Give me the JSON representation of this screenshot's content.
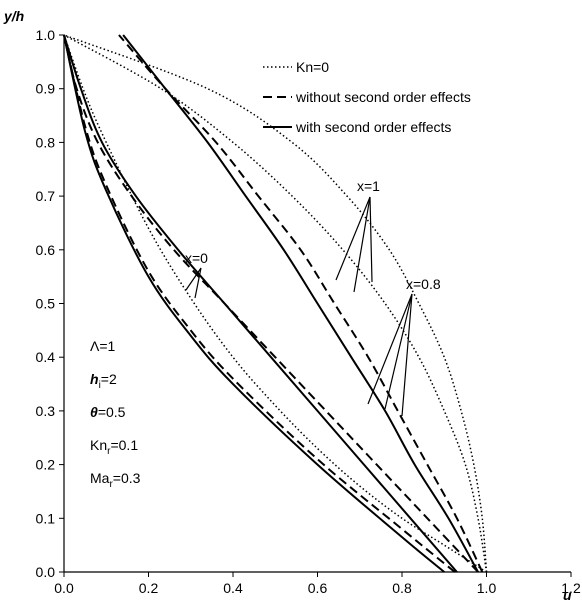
{
  "chart_data": {
    "type": "line",
    "xlabel": "u",
    "ylabel": "y/h",
    "xlim": [
      0,
      1.2
    ],
    "ylim": [
      0,
      1
    ],
    "x_ticks": [
      "0.0",
      "0.2",
      "0.4",
      "0.6",
      "0.8",
      "1.0",
      "1.2"
    ],
    "y_ticks": [
      "0.0",
      "0.1",
      "0.2",
      "0.3",
      "0.4",
      "0.5",
      "0.6",
      "0.7",
      "0.8",
      "0.9",
      "1.0"
    ],
    "grid": false,
    "legend_position": "top-right",
    "legend": [
      {
        "label": "Kn=0",
        "style": "dotted"
      },
      {
        "label": "without second order effects",
        "style": "dashed"
      },
      {
        "label": "with second order effects",
        "style": "solid"
      }
    ],
    "annotations": {
      "x0": "x=0",
      "x08": "x=0.8",
      "x1": "x=1"
    },
    "parameters": [
      {
        "main": "Λ=1",
        "italic": false,
        "sub": "",
        "tail": ""
      },
      {
        "main": "h",
        "italic": true,
        "sub": "i",
        "tail": "=2"
      },
      {
        "main": "θ",
        "italic": true,
        "sub": "",
        "tail": "=0.5"
      },
      {
        "main": "Kn",
        "italic": false,
        "sub": "r",
        "tail": "=0.1"
      },
      {
        "main": "Ma",
        "italic": false,
        "sub": "r",
        "tail": "=0.3"
      }
    ],
    "series": [
      {
        "group": "x=0",
        "style": "dotted",
        "points": [
          [
            1.0,
            0
          ],
          [
            0.9,
            0.05
          ],
          [
            0.8,
            0.1
          ],
          [
            0.7,
            0.16
          ],
          [
            0.6,
            0.23
          ],
          [
            0.5,
            0.31
          ],
          [
            0.4,
            0.4
          ],
          [
            0.3,
            0.51
          ],
          [
            0.2,
            0.64
          ],
          [
            0.1,
            0.8
          ],
          [
            0.05,
            0.89
          ],
          [
            0.0,
            1.0
          ]
        ]
      },
      {
        "group": "x=0",
        "style": "dashed",
        "points": [
          [
            0.925,
            0
          ],
          [
            0.8,
            0.08
          ],
          [
            0.6,
            0.21
          ],
          [
            0.4,
            0.36
          ],
          [
            0.3,
            0.45
          ],
          [
            0.2,
            0.56
          ],
          [
            0.1,
            0.72
          ],
          [
            0.05,
            0.83
          ],
          [
            0.0,
            1.0
          ]
        ]
      },
      {
        "group": "x=0",
        "style": "solid",
        "points": [
          [
            0.9,
            0
          ],
          [
            0.8,
            0.065
          ],
          [
            0.6,
            0.2
          ],
          [
            0.4,
            0.35
          ],
          [
            0.3,
            0.44
          ],
          [
            0.2,
            0.55
          ],
          [
            0.1,
            0.71
          ],
          [
            0.05,
            0.82
          ],
          [
            0.0,
            1.0
          ]
        ]
      },
      {
        "group": "x=0.8",
        "style": "dotted",
        "points": [
          [
            1.0,
            0
          ],
          [
            0.98,
            0.1
          ],
          [
            0.95,
            0.2
          ],
          [
            0.9,
            0.3
          ],
          [
            0.84,
            0.4
          ],
          [
            0.76,
            0.5
          ],
          [
            0.66,
            0.6
          ],
          [
            0.54,
            0.7
          ],
          [
            0.4,
            0.8
          ],
          [
            0.23,
            0.9
          ],
          [
            0.0,
            1.0
          ]
        ]
      },
      {
        "group": "x=0.8",
        "style": "dashed",
        "points": [
          [
            0.98,
            0
          ],
          [
            0.86,
            0.1
          ],
          [
            0.74,
            0.2
          ],
          [
            0.62,
            0.3
          ],
          [
            0.5,
            0.4
          ],
          [
            0.38,
            0.5
          ],
          [
            0.26,
            0.6
          ],
          [
            0.16,
            0.7
          ],
          [
            0.08,
            0.8
          ],
          [
            0.03,
            0.9
          ],
          [
            0.0,
            1.0
          ]
        ]
      },
      {
        "group": "x=0.8",
        "style": "solid",
        "points": [
          [
            0.93,
            0
          ],
          [
            0.82,
            0.1
          ],
          [
            0.71,
            0.2
          ],
          [
            0.6,
            0.3
          ],
          [
            0.49,
            0.4
          ],
          [
            0.38,
            0.5
          ],
          [
            0.27,
            0.6
          ],
          [
            0.17,
            0.7
          ],
          [
            0.09,
            0.8
          ],
          [
            0.04,
            0.9
          ],
          [
            0.0,
            1.0
          ]
        ]
      },
      {
        "group": "x=1",
        "style": "dotted",
        "points": [
          [
            1.0,
            0
          ],
          [
            0.99,
            0.1
          ],
          [
            0.97,
            0.2
          ],
          [
            0.94,
            0.3
          ],
          [
            0.9,
            0.4
          ],
          [
            0.84,
            0.5
          ],
          [
            0.77,
            0.6
          ],
          [
            0.67,
            0.7
          ],
          [
            0.54,
            0.8
          ],
          [
            0.34,
            0.9
          ],
          [
            0.0,
            1.0
          ]
        ]
      },
      {
        "group": "x=1",
        "style": "dashed",
        "points": [
          [
            0.99,
            0
          ],
          [
            0.93,
            0.1
          ],
          [
            0.86,
            0.2
          ],
          [
            0.79,
            0.3
          ],
          [
            0.72,
            0.4
          ],
          [
            0.64,
            0.5
          ],
          [
            0.56,
            0.6
          ],
          [
            0.46,
            0.7
          ],
          [
            0.36,
            0.8
          ],
          [
            0.24,
            0.9
          ],
          [
            0.13,
            1.0
          ]
        ]
      },
      {
        "group": "x=1",
        "style": "solid",
        "points": [
          [
            0.98,
            0
          ],
          [
            0.91,
            0.1
          ],
          [
            0.83,
            0.2
          ],
          [
            0.76,
            0.3
          ],
          [
            0.68,
            0.4
          ],
          [
            0.6,
            0.5
          ],
          [
            0.52,
            0.6
          ],
          [
            0.43,
            0.7
          ],
          [
            0.34,
            0.8
          ],
          [
            0.24,
            0.9
          ],
          [
            0.14,
            1.0
          ]
        ]
      }
    ]
  }
}
